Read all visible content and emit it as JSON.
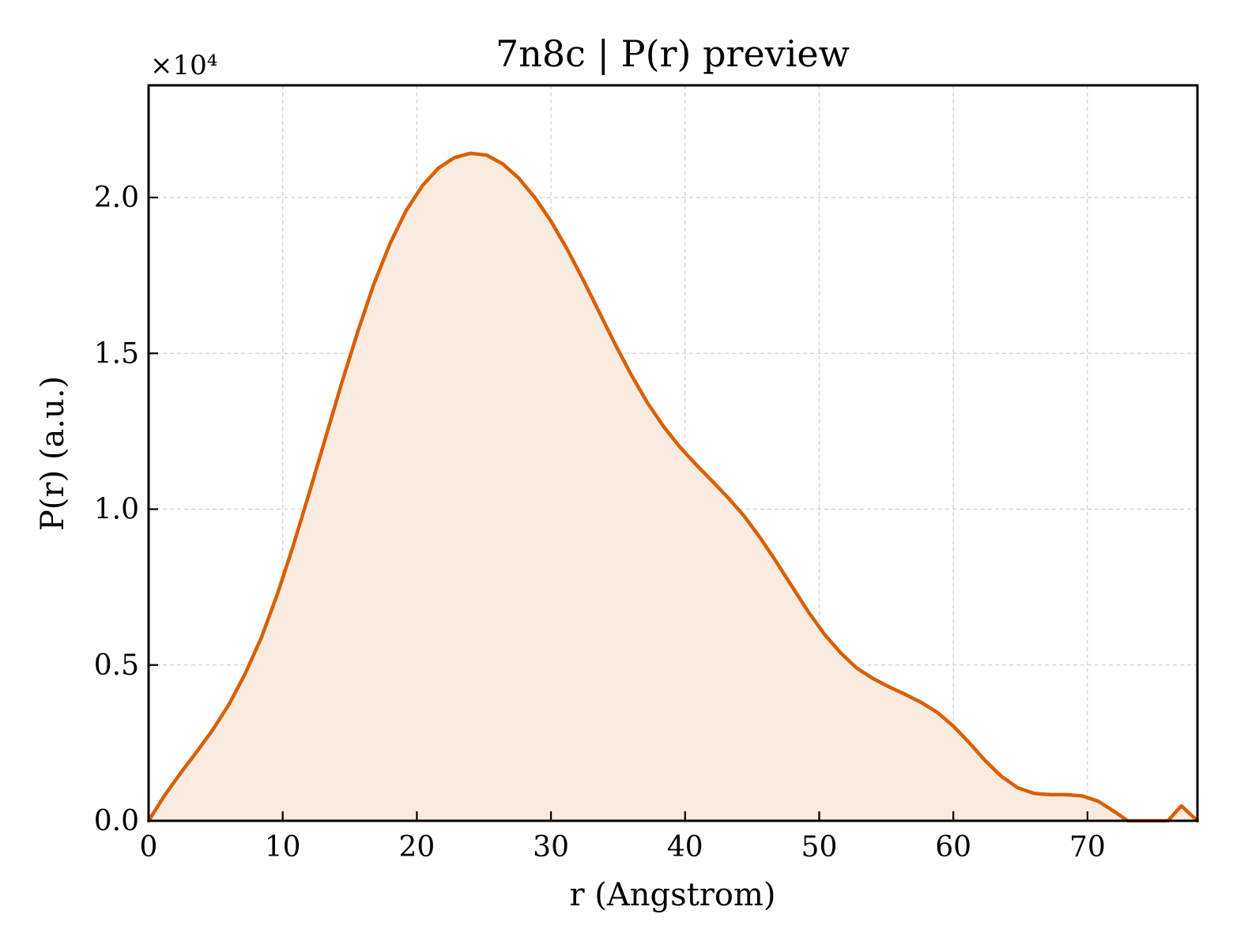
{
  "chart_data": {
    "type": "area",
    "title": "7n8c | P(r) preview",
    "xlabel": "r (Angstrom)",
    "ylabel": "P(r) (a.u.)",
    "y_offset_text": "×10⁴",
    "y_scale_multiplier": 10000,
    "xlim": [
      0,
      78.2
    ],
    "ylim": [
      0,
      2.36
    ],
    "x_ticks": [
      0,
      10,
      20,
      30,
      40,
      50,
      60,
      70
    ],
    "x_tick_labels": [
      "0",
      "10",
      "20",
      "30",
      "40",
      "50",
      "60",
      "70"
    ],
    "y_ticks": [
      0,
      0.5,
      1.0,
      1.5,
      2.0
    ],
    "y_tick_labels": [
      "0.0",
      "0.5",
      "1.0",
      "1.5",
      "2.0"
    ],
    "grid": true,
    "legend": "none",
    "colors": {
      "line": "#d95f02",
      "fill": "#f9ebe0"
    },
    "series": [
      {
        "x": [
          0,
          1.2,
          2.4,
          3.6,
          4.8,
          6.0,
          7.2,
          8.4,
          9.6,
          10.8,
          12.0,
          13.2,
          14.4,
          15.6,
          16.8,
          18.0,
          19.2,
          20.4,
          21.6,
          22.8,
          24.0,
          25.2,
          26.4,
          27.6,
          28.8,
          30.0,
          31.2,
          32.4,
          33.6,
          34.8,
          36.0,
          37.2,
          38.4,
          39.6,
          40.8,
          42.0,
          43.2,
          44.4,
          45.6,
          46.8,
          48.0,
          49.2,
          50.4,
          51.6,
          52.8,
          54.0,
          55.2,
          56.4,
          57.6,
          58.8,
          60.0,
          61.2,
          62.4,
          63.6,
          64.8,
          66.0,
          67.2,
          68.4,
          69.6,
          70.8,
          72.0,
          73.0,
          74.2,
          75.4,
          76.0,
          77.0,
          78.2
        ],
        "values": [
          0.0,
          0.082,
          0.154,
          0.222,
          0.293,
          0.374,
          0.472,
          0.587,
          0.727,
          0.885,
          1.055,
          1.23,
          1.405,
          1.57,
          1.723,
          1.852,
          1.958,
          2.037,
          2.094,
          2.128,
          2.142,
          2.136,
          2.108,
          2.062,
          2.0,
          1.924,
          1.835,
          1.736,
          1.632,
          1.528,
          1.43,
          1.341,
          1.265,
          1.2,
          1.144,
          1.091,
          1.037,
          0.978,
          0.908,
          0.831,
          0.75,
          0.67,
          0.598,
          0.539,
          0.49,
          0.457,
          0.43,
          0.406,
          0.38,
          0.348,
          0.304,
          0.25,
          0.192,
          0.142,
          0.106,
          0.088,
          0.084,
          0.084,
          0.08,
          0.063,
          0.03,
          0.0,
          0.0,
          0.0,
          0.0,
          0.048,
          0.0
        ]
      }
    ]
  }
}
